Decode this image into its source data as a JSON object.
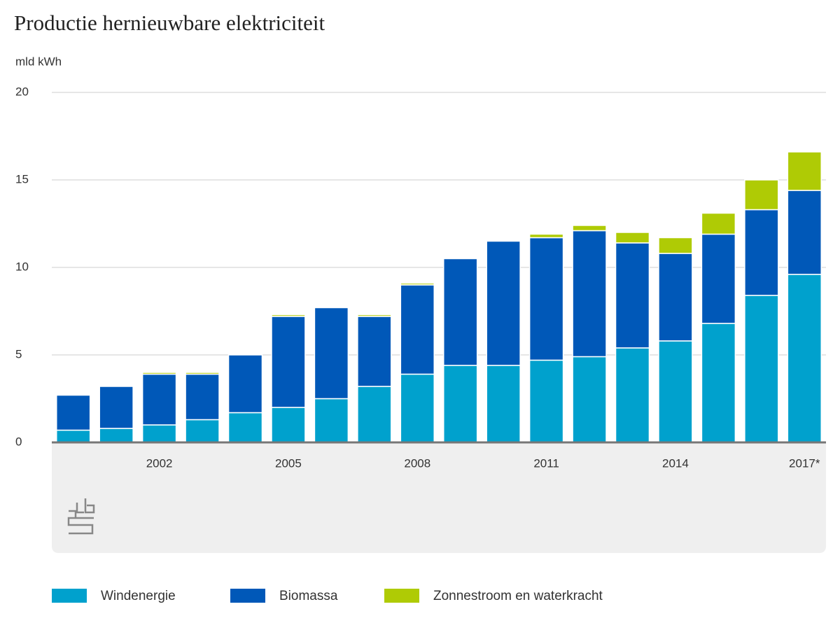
{
  "chart_data": {
    "type": "bar",
    "stacked": true,
    "title": "Productie hernieuwbare elektriciteit",
    "y_label": "mld kWh",
    "categories": [
      null,
      null,
      "2002",
      null,
      null,
      "2005",
      null,
      null,
      "2008",
      null,
      null,
      "2011",
      null,
      null,
      "2014",
      null,
      null,
      "2017*"
    ],
    "series": [
      {
        "name": "Windenergie",
        "color": "#00a1cd",
        "values": [
          0.7,
          0.8,
          1.0,
          1.3,
          1.7,
          2.0,
          2.5,
          3.2,
          3.9,
          4.4,
          4.4,
          4.7,
          4.9,
          5.4,
          5.8,
          6.8,
          8.4,
          9.6
        ]
      },
      {
        "name": "Biomassa",
        "color": "#0058b8",
        "values": [
          2.0,
          2.4,
          2.9,
          2.6,
          3.3,
          5.2,
          5.2,
          4.0,
          5.1,
          6.1,
          7.1,
          7.0,
          7.2,
          6.0,
          5.0,
          5.1,
          4.9,
          4.8
        ]
      },
      {
        "name": "Zonnestroom en waterkracht",
        "color": "#afcb05",
        "values": [
          0,
          0,
          0.1,
          0.1,
          0,
          0.1,
          0,
          0.1,
          0.1,
          0,
          0,
          0.2,
          0.3,
          0.6,
          0.9,
          1.2,
          1.7,
          2.2
        ]
      }
    ],
    "ylim": [
      0,
      20
    ],
    "yticks": [
      0,
      5,
      10,
      15,
      20
    ],
    "grid": true
  }
}
